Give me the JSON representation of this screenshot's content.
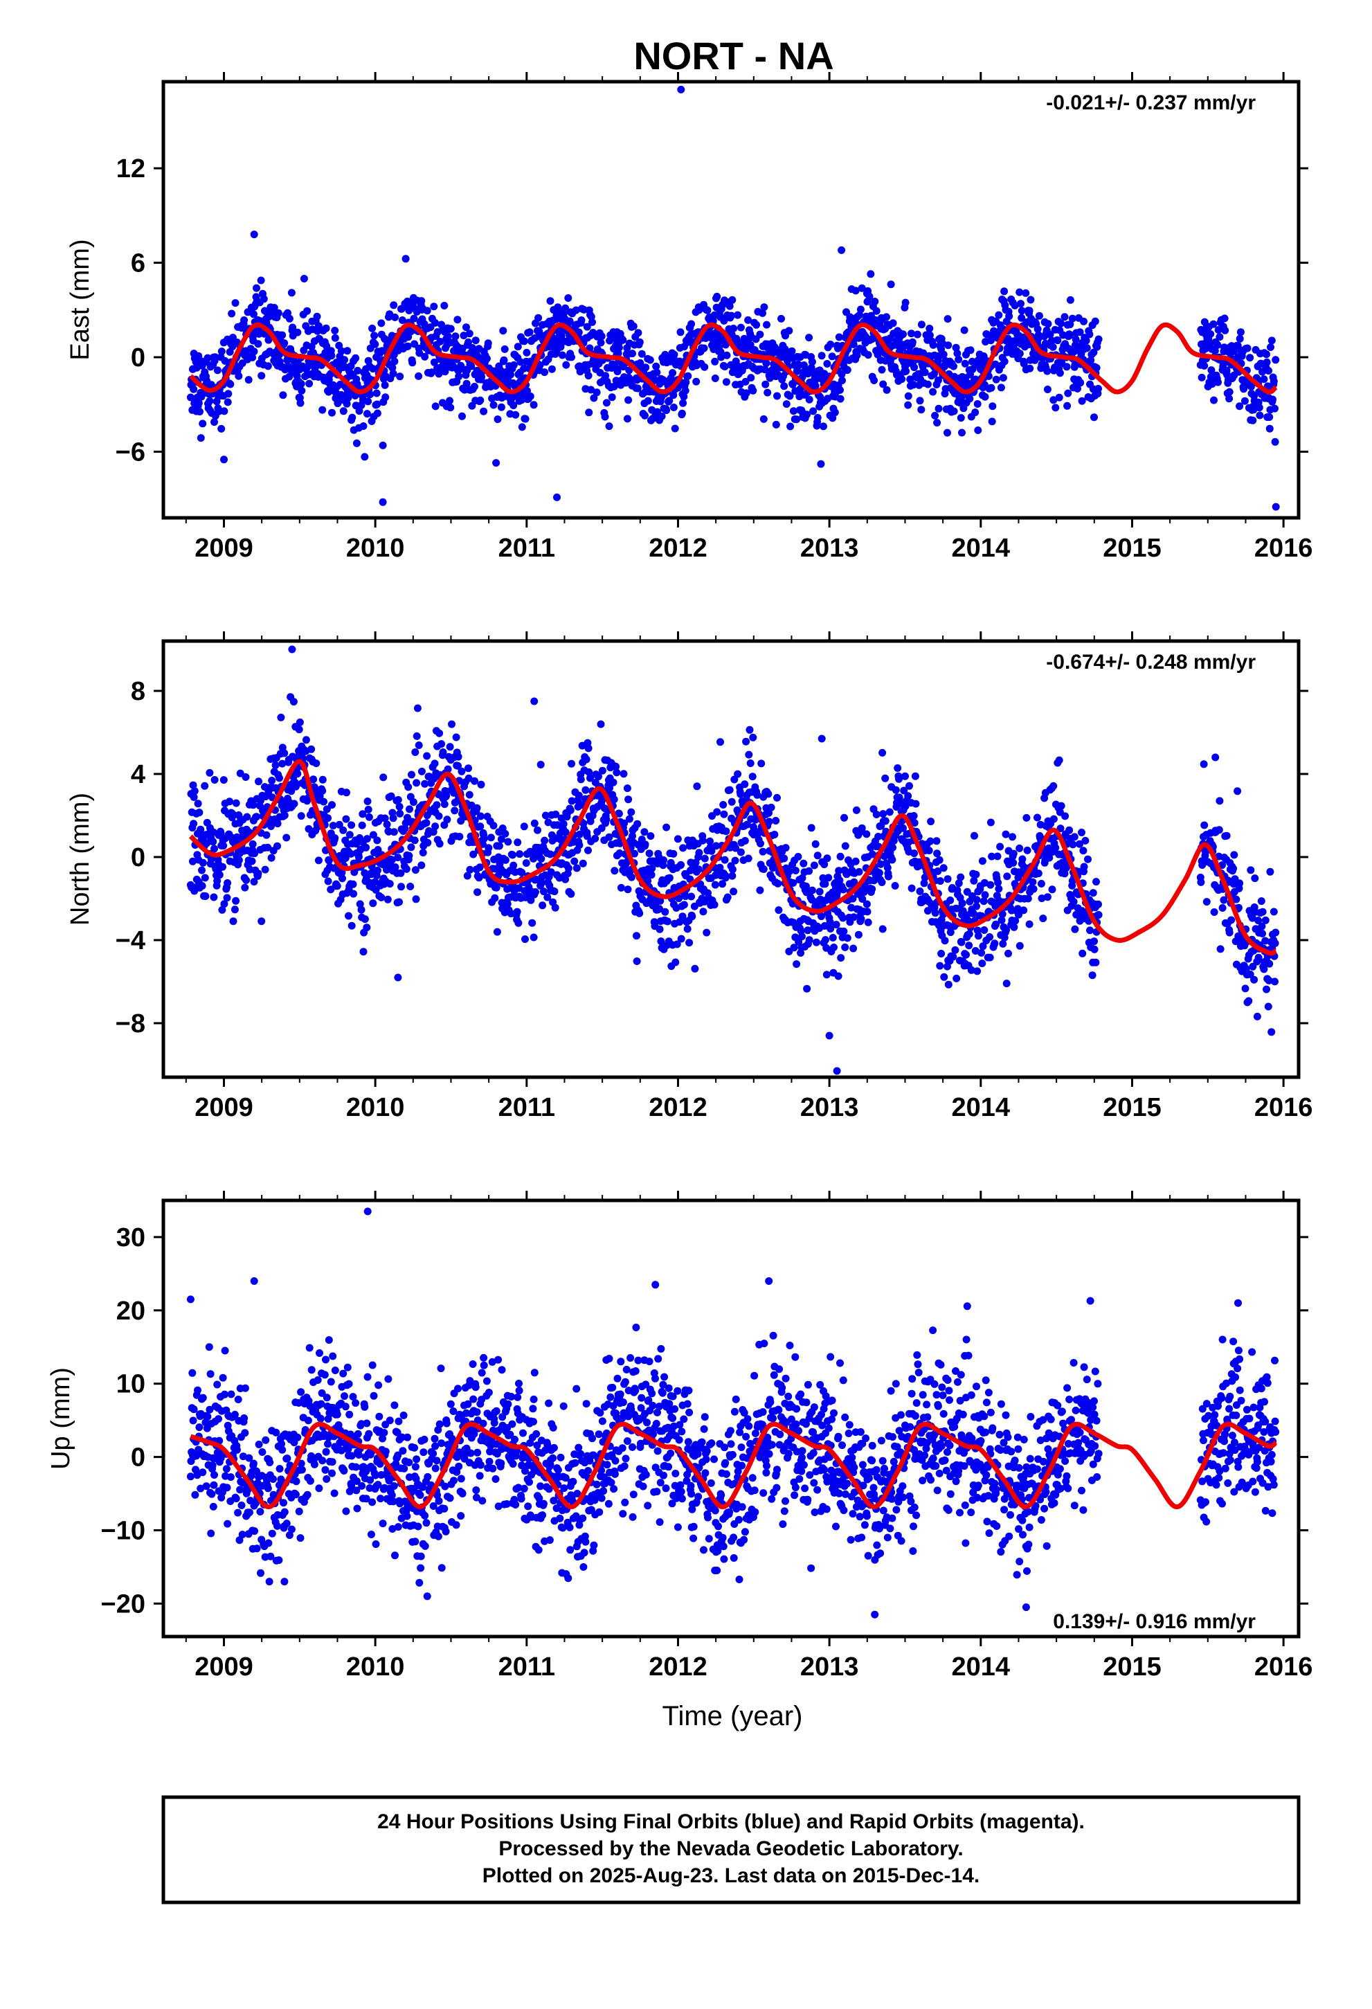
{
  "title": "NORT - NA",
  "xlabel": "Time (year)",
  "footer": {
    "line1": "24 Hour Positions Using Final Orbits (blue) and Rapid Orbits (magenta).",
    "line2": "Processed by the Nevada Geodetic Laboratory.",
    "line3": "Plotted on 2025-Aug-23. Last data on 2015-Dec-14."
  },
  "colors": {
    "data": "#0000ee",
    "model": "#ee0000",
    "frame": "#000000"
  },
  "chart_data": [
    {
      "type": "scatter",
      "component": "east",
      "ylabel": "East (mm)",
      "rate": "-0.021+/- 0.237 mm/yr",
      "xlim": [
        2008.6,
        2016.1
      ],
      "ylim": [
        -10.2,
        17.5
      ],
      "xticks": [
        2009,
        2010,
        2011,
        2012,
        2013,
        2014,
        2015,
        2016
      ],
      "xtick_labels": [
        "2009",
        "2010",
        "2011",
        "2012",
        "2013",
        "2014",
        "2015",
        "2016"
      ],
      "yticks": [
        -6,
        0,
        6,
        12
      ],
      "ytick_labels": [
        "−6",
        "0",
        "6",
        "12"
      ],
      "data_range": [
        2008.78,
        2015.95
      ],
      "gap": [
        2014.78,
        2015.45
      ],
      "model": {
        "name": "seasonal fit",
        "curve": [
          [
            2008.78,
            -1.2
          ],
          [
            2008.9,
            -2.1
          ],
          [
            2009.0,
            -1.5
          ],
          [
            2009.1,
            0.5
          ],
          [
            2009.2,
            2.0
          ],
          [
            2009.3,
            1.6
          ],
          [
            2009.4,
            0.3
          ],
          [
            2009.55,
            0.0
          ],
          [
            2009.65,
            -0.2
          ],
          [
            2009.8,
            -1.5
          ],
          [
            2009.9,
            -2.2
          ],
          [
            2010.0,
            -1.5
          ],
          [
            2010.1,
            0.5
          ],
          [
            2010.2,
            2.0
          ],
          [
            2010.3,
            1.6
          ],
          [
            2010.4,
            0.3
          ],
          [
            2010.55,
            0.0
          ],
          [
            2010.65,
            -0.2
          ],
          [
            2010.8,
            -1.5
          ],
          [
            2010.9,
            -2.2
          ],
          [
            2011.0,
            -1.5
          ],
          [
            2011.1,
            0.5
          ],
          [
            2011.2,
            2.0
          ],
          [
            2011.3,
            1.6
          ],
          [
            2011.4,
            0.3
          ],
          [
            2011.55,
            0.0
          ],
          [
            2011.65,
            -0.2
          ],
          [
            2011.8,
            -1.5
          ],
          [
            2011.9,
            -2.2
          ],
          [
            2012.0,
            -1.5
          ],
          [
            2012.1,
            0.5
          ],
          [
            2012.2,
            2.0
          ],
          [
            2012.3,
            1.6
          ],
          [
            2012.4,
            0.3
          ],
          [
            2012.55,
            0.0
          ],
          [
            2012.65,
            -0.2
          ],
          [
            2012.8,
            -1.5
          ],
          [
            2012.9,
            -2.2
          ],
          [
            2013.0,
            -1.5
          ],
          [
            2013.1,
            0.5
          ],
          [
            2013.2,
            2.0
          ],
          [
            2013.3,
            1.6
          ],
          [
            2013.4,
            0.3
          ],
          [
            2013.55,
            0.0
          ],
          [
            2013.65,
            -0.2
          ],
          [
            2013.8,
            -1.5
          ],
          [
            2013.9,
            -2.2
          ],
          [
            2014.0,
            -1.5
          ],
          [
            2014.1,
            0.5
          ],
          [
            2014.2,
            2.0
          ],
          [
            2014.3,
            1.6
          ],
          [
            2014.4,
            0.3
          ],
          [
            2014.55,
            0.0
          ],
          [
            2014.65,
            -0.2
          ],
          [
            2014.8,
            -1.5
          ],
          [
            2014.9,
            -2.2
          ],
          [
            2015.0,
            -1.5
          ],
          [
            2015.1,
            0.5
          ],
          [
            2015.2,
            2.0
          ],
          [
            2015.3,
            1.6
          ],
          [
            2015.4,
            0.3
          ],
          [
            2015.55,
            0.0
          ],
          [
            2015.65,
            -0.2
          ],
          [
            2015.8,
            -1.5
          ],
          [
            2015.9,
            -2.2
          ],
          [
            2015.95,
            -1.9
          ]
        ]
      },
      "outliers": [
        [
          2012.02,
          17.0
        ],
        [
          2009.2,
          7.8
        ],
        [
          2010.05,
          -9.2
        ],
        [
          2011.2,
          -8.9
        ],
        [
          2010.05,
          -5.6
        ],
        [
          2009.0,
          -6.5
        ],
        [
          2015.95,
          -9.5
        ],
        [
          2013.08,
          6.8
        ]
      ]
    },
    {
      "type": "scatter",
      "component": "north",
      "ylabel": "North (mm)",
      "rate": "-0.674+/- 0.248 mm/yr",
      "xlim": [
        2008.6,
        2016.1
      ],
      "ylim": [
        -10.6,
        10.4
      ],
      "xticks": [
        2009,
        2010,
        2011,
        2012,
        2013,
        2014,
        2015,
        2016
      ],
      "xtick_labels": [
        "2009",
        "2010",
        "2011",
        "2012",
        "2013",
        "2014",
        "2015",
        "2016"
      ],
      "yticks": [
        -8,
        -4,
        0,
        4,
        8
      ],
      "ytick_labels": [
        "−8",
        "−4",
        "0",
        "4",
        "8"
      ],
      "data_range": [
        2008.78,
        2015.95
      ],
      "gap": [
        2014.78,
        2015.45
      ],
      "model": {
        "name": "seasonal fit",
        "curve": [
          [
            2008.78,
            1.0
          ],
          [
            2008.9,
            0.2
          ],
          [
            2009.0,
            0.2
          ],
          [
            2009.2,
            1.1
          ],
          [
            2009.35,
            2.8
          ],
          [
            2009.5,
            4.6
          ],
          [
            2009.6,
            2.5
          ],
          [
            2009.75,
            -0.3
          ],
          [
            2009.9,
            -0.4
          ],
          [
            2010.05,
            0.0
          ],
          [
            2010.2,
            0.9
          ],
          [
            2010.35,
            2.6
          ],
          [
            2010.48,
            4.0
          ],
          [
            2010.6,
            2.3
          ],
          [
            2010.75,
            -0.7
          ],
          [
            2010.9,
            -1.2
          ],
          [
            2011.05,
            -0.8
          ],
          [
            2011.2,
            0.0
          ],
          [
            2011.35,
            1.8
          ],
          [
            2011.48,
            3.3
          ],
          [
            2011.6,
            1.6
          ],
          [
            2011.75,
            -1.1
          ],
          [
            2011.9,
            -1.9
          ],
          [
            2012.05,
            -1.5
          ],
          [
            2012.2,
            -0.6
          ],
          [
            2012.35,
            1.0
          ],
          [
            2012.48,
            2.6
          ],
          [
            2012.6,
            0.9
          ],
          [
            2012.75,
            -1.8
          ],
          [
            2012.9,
            -2.6
          ],
          [
            2013.05,
            -2.2
          ],
          [
            2013.2,
            -1.3
          ],
          [
            2013.35,
            0.4
          ],
          [
            2013.48,
            2.0
          ],
          [
            2013.6,
            0.3
          ],
          [
            2013.75,
            -2.4
          ],
          [
            2013.9,
            -3.3
          ],
          [
            2014.05,
            -2.9
          ],
          [
            2014.2,
            -2.0
          ],
          [
            2014.35,
            -0.3
          ],
          [
            2014.48,
            1.3
          ],
          [
            2014.6,
            -0.4
          ],
          [
            2014.75,
            -3.1
          ],
          [
            2014.9,
            -4.0
          ],
          [
            2015.05,
            -3.6
          ],
          [
            2015.2,
            -2.8
          ],
          [
            2015.35,
            -1.1
          ],
          [
            2015.48,
            0.6
          ],
          [
            2015.6,
            -1.1
          ],
          [
            2015.75,
            -3.8
          ],
          [
            2015.9,
            -4.6
          ],
          [
            2015.95,
            -4.5
          ]
        ]
      },
      "outliers": [
        [
          2009.45,
          10.0
        ],
        [
          2011.05,
          7.5
        ],
        [
          2012.95,
          5.7
        ],
        [
          2015.55,
          4.8
        ],
        [
          2013.0,
          -8.6
        ],
        [
          2013.05,
          -10.3
        ],
        [
          2010.15,
          -5.8
        ],
        [
          2015.9,
          -7.2
        ]
      ]
    },
    {
      "type": "scatter",
      "component": "up",
      "ylabel": "Up (mm)",
      "rate": "0.139+/- 0.916 mm/yr",
      "xlim": [
        2008.6,
        2016.1
      ],
      "ylim": [
        -24.5,
        35.0
      ],
      "xticks": [
        2009,
        2010,
        2011,
        2012,
        2013,
        2014,
        2015,
        2016
      ],
      "xtick_labels": [
        "2009",
        "2010",
        "2011",
        "2012",
        "2013",
        "2014",
        "2015",
        "2016"
      ],
      "yticks": [
        -20,
        -10,
        0,
        10,
        20,
        30
      ],
      "ytick_labels": [
        "−20",
        "−10",
        "0",
        "10",
        "20",
        "30"
      ],
      "data_range": [
        2008.78,
        2015.95
      ],
      "gap": [
        2014.78,
        2015.45
      ],
      "model": {
        "name": "seasonal fit",
        "curve": [
          [
            2008.78,
            2.8
          ],
          [
            2008.9,
            2.0
          ],
          [
            2009.0,
            1.0
          ],
          [
            2009.15,
            -3.0
          ],
          [
            2009.3,
            -6.8
          ],
          [
            2009.45,
            -2.0
          ],
          [
            2009.6,
            4.2
          ],
          [
            2009.75,
            3.2
          ],
          [
            2009.9,
            1.5
          ],
          [
            2010.0,
            1.0
          ],
          [
            2010.15,
            -3.0
          ],
          [
            2010.3,
            -6.8
          ],
          [
            2010.45,
            -2.0
          ],
          [
            2010.6,
            4.2
          ],
          [
            2010.75,
            3.2
          ],
          [
            2010.9,
            1.5
          ],
          [
            2011.0,
            1.0
          ],
          [
            2011.15,
            -3.0
          ],
          [
            2011.3,
            -6.8
          ],
          [
            2011.45,
            -2.0
          ],
          [
            2011.6,
            4.2
          ],
          [
            2011.75,
            3.2
          ],
          [
            2011.9,
            1.5
          ],
          [
            2012.0,
            1.0
          ],
          [
            2012.15,
            -3.0
          ],
          [
            2012.3,
            -6.8
          ],
          [
            2012.45,
            -2.0
          ],
          [
            2012.6,
            4.2
          ],
          [
            2012.75,
            3.2
          ],
          [
            2012.9,
            1.5
          ],
          [
            2013.0,
            1.0
          ],
          [
            2013.15,
            -3.0
          ],
          [
            2013.3,
            -6.8
          ],
          [
            2013.45,
            -2.0
          ],
          [
            2013.6,
            4.2
          ],
          [
            2013.75,
            3.2
          ],
          [
            2013.9,
            1.5
          ],
          [
            2014.0,
            1.0
          ],
          [
            2014.15,
            -3.0
          ],
          [
            2014.3,
            -6.8
          ],
          [
            2014.45,
            -2.0
          ],
          [
            2014.6,
            4.2
          ],
          [
            2014.75,
            3.2
          ],
          [
            2014.9,
            1.5
          ],
          [
            2015.0,
            1.0
          ],
          [
            2015.15,
            -3.0
          ],
          [
            2015.3,
            -6.8
          ],
          [
            2015.45,
            -2.0
          ],
          [
            2015.6,
            4.2
          ],
          [
            2015.75,
            3.2
          ],
          [
            2015.9,
            1.5
          ],
          [
            2015.95,
            2.0
          ]
        ]
      },
      "outliers": [
        [
          2009.95,
          33.5
        ],
        [
          2009.2,
          24.0
        ],
        [
          2008.78,
          21.5
        ],
        [
          2011.85,
          23.5
        ],
        [
          2012.6,
          24.0
        ],
        [
          2013.3,
          -21.5
        ],
        [
          2014.3,
          -20.5
        ],
        [
          2015.7,
          21.0
        ],
        [
          2009.4,
          -17.0
        ]
      ]
    }
  ]
}
